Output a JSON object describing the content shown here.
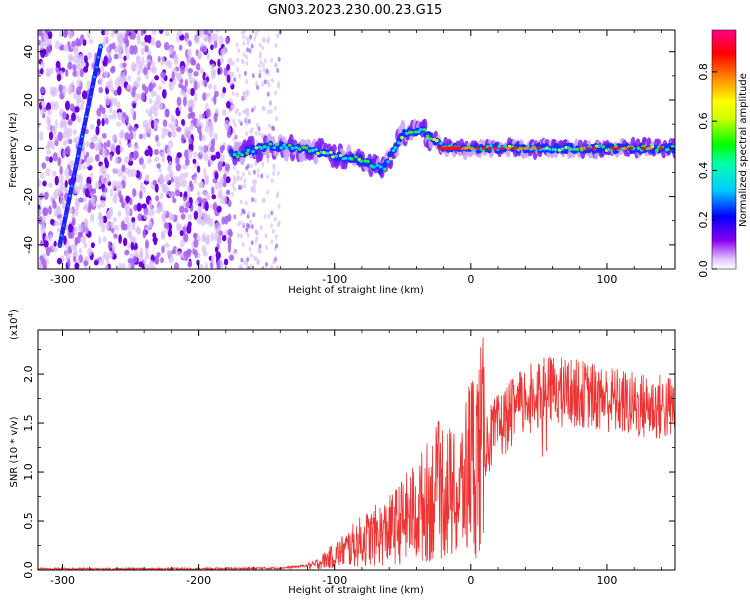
{
  "title": "GN03.2023.230.00.23.G15",
  "chart_data": [
    {
      "type": "heatmap",
      "xlabel": "Height of straight line (km)",
      "ylabel": "Frequency (Hz)",
      "xlim": [
        -318,
        150
      ],
      "ylim": [
        -50,
        49
      ],
      "xticks": [
        -300,
        -200,
        -100,
        0,
        100
      ],
      "yticks": [
        -40,
        -20,
        0,
        20,
        40
      ],
      "colorbar": {
        "label": "Normalized spectral amplitude",
        "range": [
          0,
          0.97
        ],
        "ticks": [
          0.0,
          0.2,
          0.4,
          0.6,
          0.8
        ],
        "tick_labels": [
          "0.0",
          "0.2",
          "0.4",
          "0.6",
          "0.8"
        ],
        "colormap": [
          "#ffffff",
          "#8800ee",
          "#0000ff",
          "#00e5ff",
          "#00ff00",
          "#ffff00",
          "#ff8800",
          "#ff0000",
          "#ff0088"
        ]
      },
      "features": {
        "noise_region_x": [
          -318,
          -175
        ],
        "sparse_noise_x": [
          -175,
          -140
        ],
        "diagonal_streak": {
          "x": [
            -302,
            -272
          ],
          "y": [
            -40,
            42
          ]
        },
        "center_band": [
          {
            "x": -175,
            "y": -3
          },
          {
            "x": -150,
            "y": 1
          },
          {
            "x": -125,
            "y": 0
          },
          {
            "x": -100,
            "y": -3
          },
          {
            "x": -80,
            "y": -5
          },
          {
            "x": -65,
            "y": -9
          },
          {
            "x": -50,
            "y": 6
          },
          {
            "x": -35,
            "y": 7
          },
          {
            "x": -20,
            "y": 0
          },
          {
            "x": 0,
            "y": 0
          },
          {
            "x": 50,
            "y": 0
          },
          {
            "x": 100,
            "y": 0
          },
          {
            "x": 150,
            "y": 0
          }
        ]
      }
    },
    {
      "type": "line",
      "xlabel": "Height of straight line (km)",
      "ylabel": "SNR (10 * v/v)",
      "yscale_label": "(x10",
      "yscale_exp": "4",
      "yscale_close": ")",
      "xlim": [
        -318,
        150
      ],
      "ylim": [
        0,
        2.45
      ],
      "xticks": [
        -300,
        -200,
        -100,
        0,
        100
      ],
      "yticks": [
        0.0,
        0.5,
        1.0,
        1.5,
        2.0
      ],
      "ytick_labels": [
        "0.0",
        "0.5",
        "1.0",
        "1.5",
        "2.0"
      ],
      "color": "#ee3333",
      "envelope": [
        {
          "x": -318,
          "y": 0.01
        },
        {
          "x": -200,
          "y": 0.01
        },
        {
          "x": -140,
          "y": 0.02
        },
        {
          "x": -115,
          "y": 0.05
        },
        {
          "x": -100,
          "y": 0.15
        },
        {
          "x": -80,
          "y": 0.3
        },
        {
          "x": -60,
          "y": 0.4
        },
        {
          "x": -40,
          "y": 0.6
        },
        {
          "x": -20,
          "y": 0.85
        },
        {
          "x": -10,
          "y": 0.7
        },
        {
          "x": 0,
          "y": 1.1
        },
        {
          "x": 20,
          "y": 1.45
        },
        {
          "x": 40,
          "y": 1.75
        },
        {
          "x": 60,
          "y": 1.85
        },
        {
          "x": 80,
          "y": 1.8
        },
        {
          "x": 100,
          "y": 1.75
        },
        {
          "x": 120,
          "y": 1.68
        },
        {
          "x": 150,
          "y": 1.65
        }
      ]
    }
  ]
}
